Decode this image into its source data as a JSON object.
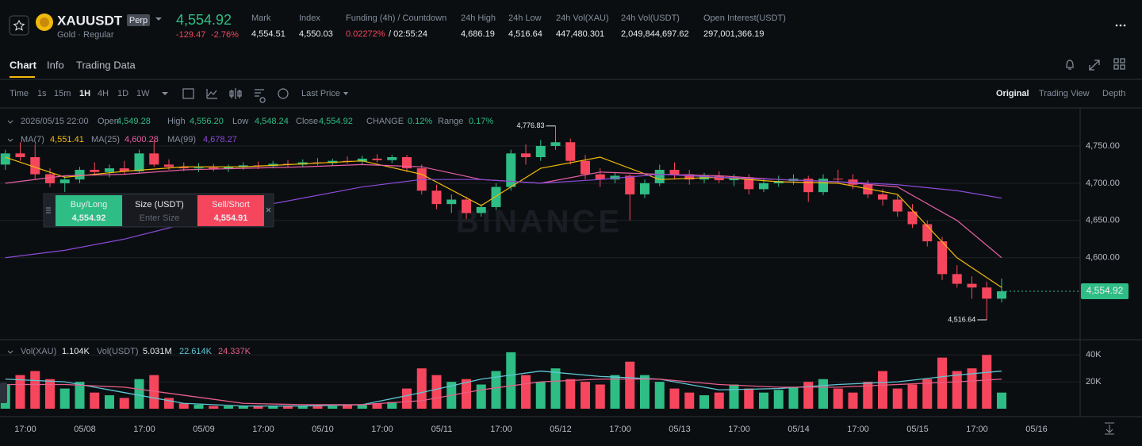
{
  "header": {
    "symbol": "XAUUSDT",
    "badge": "Perp",
    "subtitle": "Gold · Regular",
    "price": "4,554.92",
    "change": "-129.47",
    "change_pct": "-2.76%",
    "stats": [
      {
        "label": "Mark",
        "value": "4,554.51"
      },
      {
        "label": "Index",
        "value": "4,550.03"
      },
      {
        "label": "Funding (4h) / Countdown",
        "value": "0.02272%",
        "extra": "/ 02:55:24"
      },
      {
        "label": "24h High",
        "value": "4,686.19"
      },
      {
        "label": "24h Low",
        "value": "4,516.64"
      },
      {
        "label": "24h Vol(XAU)",
        "value": "447,480.301"
      },
      {
        "label": "24h Vol(USDT)",
        "value": "2,049,844,697.62"
      },
      {
        "label": "Open Interest(USDT)",
        "value": "297,001,366.19"
      }
    ]
  },
  "tabs": [
    "Chart",
    "Info",
    "Trading Data"
  ],
  "toolbar": {
    "intervals": [
      "Time",
      "1s",
      "15m",
      "1H",
      "4H",
      "1D",
      "1W"
    ],
    "price_mode": "Last Price",
    "views": [
      "Original",
      "Trading View",
      "Depth"
    ]
  },
  "info": {
    "time": "2026/05/15 22:00",
    "fields": [
      {
        "label": "Open",
        "value": "4,549.28"
      },
      {
        "label": "High",
        "value": "4,556.20"
      },
      {
        "label": "Low",
        "value": "4,548.24"
      },
      {
        "label": "Close",
        "value": "4,554.92"
      },
      {
        "label": "CHANGE",
        "value": "0.12%"
      },
      {
        "label": "Range",
        "value": "0.17%"
      }
    ]
  },
  "volume_info": {
    "label": "Vol(XAU)",
    "value": "1.104K",
    "label2": "Vol(USDT)",
    "value2": "5.031M",
    "ma1": "22.614K",
    "ma2": "24.337K"
  },
  "order_panel": {
    "buy": "Buy/Long",
    "buy_price": "4,554.92",
    "size": "Size (USDT)",
    "size_placeholder": "Enter Size",
    "sell": "Sell/Short",
    "sell_price": "4,554.91"
  },
  "watermark": "BINANCE",
  "chart_data": {
    "type": "candlestick",
    "ylim": [
      4490,
      4800
    ],
    "yticks": [
      {
        "value": 4750,
        "label": "4,750.00"
      },
      {
        "value": 4700,
        "label": "4,700.00"
      },
      {
        "value": 4650,
        "label": "4,650.00"
      },
      {
        "value": 4600,
        "label": "4,600.00"
      }
    ],
    "last_price": {
      "value": 4554.92,
      "label": "4,554.92"
    },
    "high_mark": {
      "index": 37,
      "value": 4776.83,
      "label": "4,776.83"
    },
    "low_mark": {
      "index": 66,
      "value": 4516.64,
      "label": "4,516.64"
    },
    "up_color": "#2ebd85",
    "down_color": "#f6465d",
    "time_labels": [
      "17:00",
      "05/08",
      "17:00",
      "05/09",
      "17:00",
      "05/10",
      "17:00",
      "05/11",
      "17:00",
      "05/12",
      "17:00",
      "05/13",
      "17:00",
      "05/14",
      "17:00",
      "05/15",
      "17:00",
      "05/16"
    ],
    "candles": [
      [
        4725,
        4745,
        4718,
        4740
      ],
      [
        4740,
        4755,
        4730,
        4735
      ],
      [
        4735,
        4752,
        4705,
        4712
      ],
      [
        4712,
        4720,
        4695,
        4700
      ],
      [
        4700,
        4710,
        4688,
        4705
      ],
      [
        4705,
        4722,
        4700,
        4718
      ],
      [
        4718,
        4728,
        4710,
        4715
      ],
      [
        4715,
        4725,
        4708,
        4720
      ],
      [
        4720,
        4730,
        4712,
        4716
      ],
      [
        4716,
        4745,
        4714,
        4740
      ],
      [
        4740,
        4758,
        4722,
        4725
      ],
      [
        4725,
        4732,
        4718,
        4722
      ],
      [
        4722,
        4728,
        4716,
        4720
      ],
      [
        4720,
        4727,
        4715,
        4721
      ],
      [
        4721,
        4726,
        4716,
        4719
      ],
      [
        4719,
        4725,
        4715,
        4722
      ],
      [
        4722,
        4728,
        4718,
        4724
      ],
      [
        4724,
        4729,
        4719,
        4723
      ],
      [
        4723,
        4730,
        4720,
        4726
      ],
      [
        4726,
        4731,
        4722,
        4725
      ],
      [
        4725,
        4732,
        4721,
        4728
      ],
      [
        4728,
        4734,
        4724,
        4727
      ],
      [
        4727,
        4733,
        4723,
        4730
      ],
      [
        4730,
        4736,
        4726,
        4729
      ],
      [
        4729,
        4737,
        4725,
        4733
      ],
      [
        4733,
        4739,
        4728,
        4731
      ],
      [
        4731,
        4738,
        4727,
        4735
      ],
      [
        4735,
        4738,
        4715,
        4720
      ],
      [
        4720,
        4725,
        4685,
        4690
      ],
      [
        4690,
        4698,
        4665,
        4672
      ],
      [
        4672,
        4685,
        4660,
        4678
      ],
      [
        4678,
        4682,
        4652,
        4660
      ],
      [
        4660,
        4672,
        4655,
        4668
      ],
      [
        4668,
        4700,
        4664,
        4695
      ],
      [
        4695,
        4745,
        4690,
        4740
      ],
      [
        4740,
        4752,
        4725,
        4735
      ],
      [
        4735,
        4758,
        4730,
        4750
      ],
      [
        4750,
        4776.83,
        4745,
        4755
      ],
      [
        4755,
        4760,
        4725,
        4730
      ],
      [
        4730,
        4738,
        4705,
        4712
      ],
      [
        4712,
        4720,
        4695,
        4705
      ],
      [
        4705,
        4715,
        4700,
        4710
      ],
      [
        4710,
        4712,
        4650,
        4685
      ],
      [
        4685,
        4705,
        4680,
        4700
      ],
      [
        4700,
        4725,
        4696,
        4718
      ],
      [
        4718,
        4728,
        4705,
        4712
      ],
      [
        4712,
        4718,
        4698,
        4705
      ],
      [
        4705,
        4714,
        4700,
        4710
      ],
      [
        4710,
        4716,
        4700,
        4704
      ],
      [
        4704,
        4712,
        4696,
        4708
      ],
      [
        4708,
        4712,
        4685,
        4692
      ],
      [
        4692,
        4705,
        4688,
        4700
      ],
      [
        4700,
        4710,
        4695,
        4703
      ],
      [
        4703,
        4712,
        4698,
        4706
      ],
      [
        4706,
        4710,
        4675,
        4688
      ],
      [
        4688,
        4712,
        4684,
        4706
      ],
      [
        4706,
        4718,
        4700,
        4705
      ],
      [
        4705,
        4712,
        4692,
        4698
      ],
      [
        4698,
        4704,
        4680,
        4685
      ],
      [
        4685,
        4692,
        4670,
        4678
      ],
      [
        4678,
        4684,
        4655,
        4662
      ],
      [
        4662,
        4672,
        4640,
        4645
      ],
      [
        4645,
        4650,
        4615,
        4622
      ],
      [
        4622,
        4628,
        4570,
        4578
      ],
      [
        4578,
        4590,
        4560,
        4565
      ],
      [
        4565,
        4575,
        4545,
        4560
      ],
      [
        4560,
        4568,
        4516.64,
        4545
      ],
      [
        4545,
        4572,
        4540,
        4554.92
      ]
    ],
    "ma": [
      {
        "name": "MA(7)",
        "label": "4,551.41",
        "color": "#f0b90b",
        "x": [
          0,
          4,
          8,
          12,
          16,
          20,
          24,
          28,
          32,
          36,
          40,
          44,
          48,
          52,
          56,
          60,
          64,
          67
        ],
        "values": [
          4735,
          4708,
          4716,
          4722,
          4722,
          4726,
          4730,
          4712,
          4670,
          4720,
          4735,
          4705,
          4708,
          4702,
          4700,
          4685,
          4600,
          4560
        ]
      },
      {
        "name": "MA(25)",
        "label": "4,600.28",
        "color": "#e75fa6",
        "x": [
          0,
          4,
          8,
          12,
          16,
          20,
          24,
          28,
          32,
          36,
          40,
          44,
          48,
          52,
          56,
          60,
          64,
          67
        ],
        "values": [
          4700,
          4710,
          4712,
          4718,
          4720,
          4722,
          4725,
          4722,
          4705,
          4700,
          4715,
          4712,
          4710,
          4705,
          4702,
          4695,
          4650,
          4600
        ]
      },
      {
        "name": "MA(99)",
        "label": "4,678.27",
        "color": "#8a4ad6",
        "x": [
          0,
          4,
          8,
          12,
          16,
          20,
          24,
          28,
          32,
          36,
          40,
          44,
          48,
          52,
          56,
          60,
          64,
          67
        ],
        "values": [
          4600,
          4610,
          4625,
          4645,
          4665,
          4680,
          4695,
          4705,
          4705,
          4700,
          4705,
          4712,
          4708,
          4705,
          4702,
          4698,
          4690,
          4680
        ]
      }
    ],
    "vlim": [
      0,
      49000
    ],
    "vticks": [
      {
        "value": 40000,
        "label": "40K"
      },
      {
        "value": 20000,
        "label": "20K"
      }
    ],
    "volume": [
      18000,
      25000,
      28000,
      22000,
      15000,
      20000,
      12000,
      10000,
      8000,
      22000,
      25000,
      8000,
      4000,
      3000,
      2000,
      2000,
      2000,
      2000,
      2000,
      2000,
      2000,
      2000,
      2000,
      3000,
      3000,
      4000,
      5000,
      15000,
      30000,
      25000,
      20000,
      22000,
      18000,
      28000,
      42000,
      25000,
      20000,
      30000,
      22000,
      20000,
      18000,
      25000,
      35000,
      25000,
      20000,
      15000,
      12000,
      10000,
      12000,
      18000,
      15000,
      12000,
      14000,
      16000,
      20000,
      22000,
      15000,
      12000,
      20000,
      28000,
      15000,
      18000,
      22000,
      38000,
      28000,
      30000,
      40000,
      12000
    ],
    "volume_ma": [
      {
        "color": "#5fc7d4",
        "x": [
          0,
          4,
          8,
          12,
          16,
          20,
          24,
          28,
          32,
          36,
          40,
          44,
          48,
          52,
          56,
          60,
          64,
          67
        ],
        "values": [
          22000,
          20000,
          12000,
          4000,
          2000,
          2000,
          3000,
          12000,
          22000,
          28000,
          24000,
          22000,
          14000,
          15000,
          18000,
          20000,
          25000,
          28000
        ]
      },
      {
        "color": "#e75f8a",
        "x": [
          0,
          4,
          8,
          12,
          16,
          20,
          24,
          28,
          32,
          36,
          40,
          44,
          48,
          52,
          56,
          60,
          64,
          67
        ],
        "values": [
          18000,
          18000,
          16000,
          10000,
          4000,
          3000,
          3000,
          6000,
          14000,
          20000,
          22000,
          22000,
          18000,
          16000,
          16000,
          18000,
          20000,
          22000
        ]
      }
    ]
  }
}
